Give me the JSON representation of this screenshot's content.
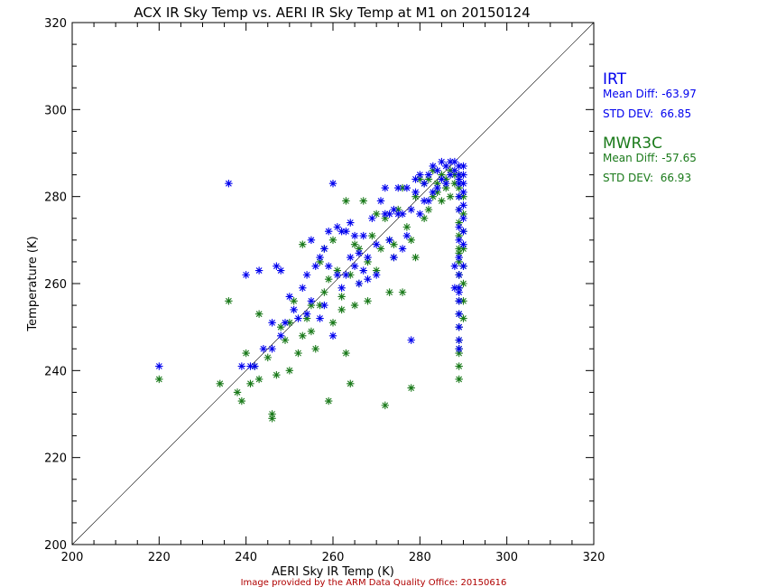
{
  "footer": "Image provided by the ARM Data Quality Office: 20150616",
  "colors": {
    "irt": "#0000ee",
    "mwr": "#1a7a1a",
    "axis": "#000000",
    "footer": "#b00000"
  },
  "stats": {
    "irt": {
      "name": "IRT",
      "mean_diff": "Mean Diff: -63.97",
      "std_dev": "STD DEV:  66.85"
    },
    "mwr": {
      "name": "MWR3C",
      "mean_diff": "Mean Diff: -57.65",
      "std_dev": "STD DEV:  66.93"
    }
  },
  "chart_data": {
    "type": "scatter",
    "title": "ACX IR Sky Temp vs. AERI IR Sky Temp at M1 on 20150124",
    "xlabel": "AERI Sky IR Temp (K)",
    "ylabel": "Temperature (K)",
    "xlim": [
      200,
      320
    ],
    "ylim": [
      200,
      320
    ],
    "xticks": [
      "200",
      "220",
      "240",
      "260",
      "280",
      "300",
      "320"
    ],
    "yticks": [
      "200",
      "220",
      "240",
      "260",
      "280",
      "300",
      "320"
    ],
    "reference_line": "y = x",
    "marker": "asterisk",
    "series": [
      {
        "name": "IRT",
        "x": [
          220,
          236,
          239,
          240,
          241,
          242,
          243,
          244,
          246,
          246,
          247,
          248,
          248,
          249,
          250,
          251,
          252,
          253,
          254,
          254,
          255,
          255,
          256,
          257,
          257,
          258,
          258,
          259,
          259,
          260,
          260,
          261,
          261,
          262,
          262,
          263,
          263,
          264,
          264,
          265,
          265,
          266,
          266,
          267,
          267,
          268,
          268,
          269,
          270,
          270,
          271,
          272,
          272,
          273,
          273,
          274,
          274,
          275,
          275,
          276,
          276,
          277,
          277,
          278,
          278,
          279,
          279,
          280,
          280,
          281,
          281,
          282,
          282,
          283,
          283,
          284,
          284,
          285,
          285,
          286,
          286,
          287,
          287,
          288,
          288,
          289,
          289,
          289,
          289,
          289,
          289,
          289,
          289,
          289,
          289,
          289,
          289,
          289,
          289,
          289,
          289,
          290,
          290,
          290,
          290,
          290,
          290,
          290,
          290,
          290,
          288,
          288,
          289
        ],
        "y": [
          241,
          283,
          241,
          262,
          241,
          241,
          263,
          245,
          245,
          251,
          264,
          248,
          263,
          251,
          257,
          254,
          252,
          259,
          262,
          253,
          256,
          270,
          264,
          252,
          266,
          268,
          255,
          264,
          272,
          248,
          283,
          262,
          273,
          272,
          259,
          262,
          272,
          266,
          274,
          264,
          271,
          260,
          267,
          271,
          263,
          261,
          266,
          275,
          262,
          269,
          279,
          276,
          282,
          270,
          276,
          277,
          266,
          282,
          276,
          276,
          268,
          282,
          271,
          247,
          277,
          284,
          281,
          276,
          285,
          283,
          279,
          279,
          285,
          287,
          281,
          286,
          282,
          288,
          284,
          287,
          283,
          288,
          285,
          288,
          286,
          287,
          285,
          284,
          283,
          280,
          277,
          273,
          270,
          266,
          262,
          259,
          256,
          253,
          250,
          247,
          245,
          287,
          285,
          283,
          281,
          278,
          275,
          272,
          269,
          264,
          264,
          259,
          258
        ]
      },
      {
        "name": "MWR3C",
        "x": [
          220,
          234,
          236,
          238,
          239,
          240,
          241,
          242,
          243,
          243,
          245,
          246,
          246,
          247,
          248,
          249,
          250,
          250,
          251,
          252,
          253,
          253,
          254,
          255,
          255,
          256,
          257,
          257,
          258,
          258,
          259,
          259,
          260,
          260,
          261,
          262,
          262,
          263,
          263,
          264,
          264,
          265,
          265,
          266,
          266,
          267,
          268,
          268,
          269,
          270,
          270,
          271,
          272,
          272,
          273,
          273,
          274,
          274,
          275,
          276,
          276,
          277,
          278,
          278,
          279,
          279,
          280,
          281,
          281,
          282,
          282,
          283,
          283,
          284,
          284,
          285,
          285,
          286,
          286,
          287,
          287,
          288,
          288,
          289,
          289,
          289,
          289,
          289,
          289,
          289,
          289,
          289,
          289,
          289,
          289,
          289,
          289,
          289,
          289,
          289,
          289,
          289,
          289,
          290,
          290,
          290,
          290,
          290,
          290,
          290,
          290
        ],
        "y": [
          238,
          237,
          256,
          235,
          233,
          244,
          237,
          241,
          238,
          253,
          243,
          230,
          229,
          239,
          250,
          247,
          251,
          240,
          256,
          244,
          269,
          248,
          252,
          255,
          249,
          245,
          265,
          255,
          268,
          258,
          233,
          261,
          270,
          251,
          263,
          257,
          254,
          279,
          244,
          262,
          237,
          269,
          255,
          268,
          260,
          279,
          265,
          256,
          271,
          263,
          276,
          268,
          232,
          275,
          270,
          258,
          266,
          269,
          277,
          258,
          282,
          273,
          236,
          270,
          280,
          266,
          284,
          275,
          283,
          277,
          284,
          280,
          286,
          283,
          281,
          285,
          279,
          284,
          282,
          286,
          280,
          283,
          285,
          285,
          282,
          280,
          277,
          274,
          271,
          268,
          265,
          262,
          259,
          256,
          253,
          250,
          247,
          244,
          241,
          238,
          245,
          267,
          262,
          280,
          276,
          272,
          268,
          264,
          260,
          256,
          252
        ]
      }
    ]
  }
}
